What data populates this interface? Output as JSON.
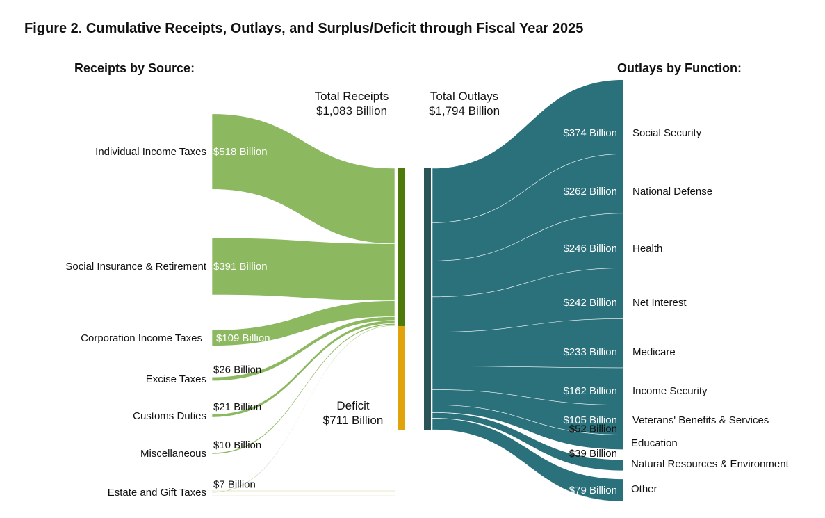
{
  "chart_data": {
    "type": "sankey",
    "title": "Figure 2. Cumulative Receipts, Outlays, and Surplus/Deficit through Fiscal Year 2025",
    "units": "Billion USD",
    "receipts_heading": "Receipts by Source:",
    "outlays_heading": "Outlays by Function:",
    "total_receipts": {
      "label": "Total Receipts",
      "value_label": "$1,083 Billion",
      "value": 1083
    },
    "total_outlays": {
      "label": "Total Outlays",
      "value_label": "$1,794 Billion",
      "value": 1794
    },
    "deficit": {
      "label": "Deficit",
      "value_label": "$711 Billion",
      "value": 711
    },
    "receipts": [
      {
        "name": "Individual Income Taxes",
        "value": 518,
        "value_label": "$518 Billion"
      },
      {
        "name": "Social Insurance & Retirement",
        "value": 391,
        "value_label": "$391 Billion"
      },
      {
        "name": "Corporation Income Taxes",
        "value": 109,
        "value_label": "$109 Billion"
      },
      {
        "name": "Excise Taxes",
        "value": 26,
        "value_label": "$26 Billion"
      },
      {
        "name": "Customs Duties",
        "value": 21,
        "value_label": "$21 Billion"
      },
      {
        "name": "Miscellaneous",
        "value": 10,
        "value_label": "$10 Billion"
      },
      {
        "name": "Estate and Gift Taxes",
        "value": 7,
        "value_label": "$7 Billion"
      }
    ],
    "outlays": [
      {
        "name": "Social Security",
        "value": 374,
        "value_label": "$374 Billion"
      },
      {
        "name": "National Defense",
        "value": 262,
        "value_label": "$262 Billion"
      },
      {
        "name": "Health",
        "value": 246,
        "value_label": "$246 Billion"
      },
      {
        "name": "Net Interest",
        "value": 242,
        "value_label": "$242 Billion"
      },
      {
        "name": "Medicare",
        "value": 233,
        "value_label": "$233 Billion"
      },
      {
        "name": "Income Security",
        "value": 162,
        "value_label": "$162 Billion"
      },
      {
        "name": "Veterans' Benefits & Services",
        "value": 105,
        "value_label": "$105 Billion"
      },
      {
        "name": "Education",
        "value": 52,
        "value_label": "$52 Billion"
      },
      {
        "name": "Natural Resources & Environment",
        "value": 39,
        "value_label": "$39 Billion"
      },
      {
        "name": "Other",
        "value": 79,
        "value_label": "$79 Billion"
      }
    ],
    "colors": {
      "receipts_flow": "#8cb860",
      "receipts_bar": "#4e7a0c",
      "deficit_bar": "#e0a30c",
      "outlays_flow": "#2b717c",
      "outlays_bar": "#2a5558"
    }
  }
}
